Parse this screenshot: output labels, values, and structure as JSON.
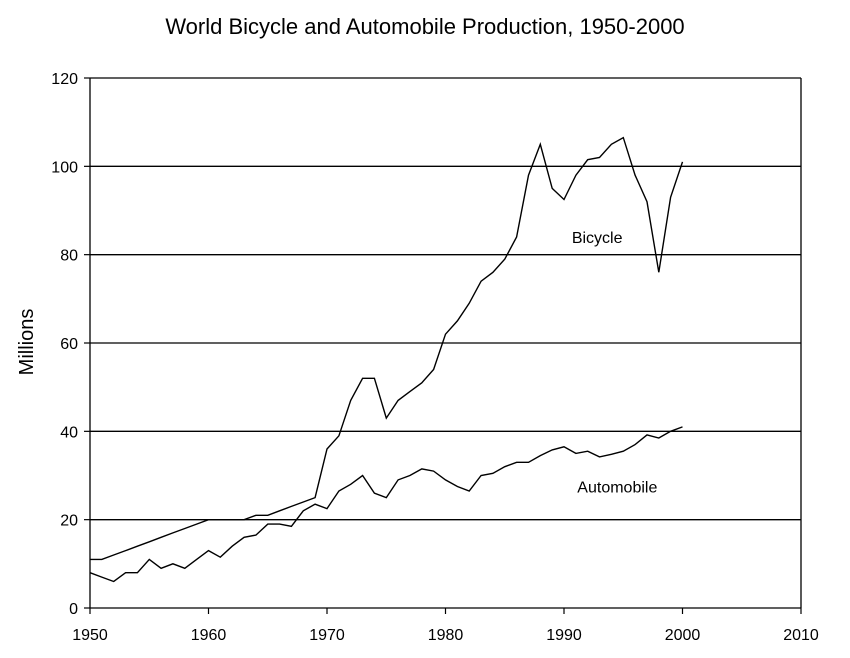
{
  "chart_data": {
    "type": "line",
    "title": "World Bicycle and Automobile Production, 1950-2000",
    "xlabel": "",
    "ylabel": "Millions",
    "xlim": [
      1950,
      2010
    ],
    "ylim": [
      0,
      120
    ],
    "x_ticks": [
      1950,
      1960,
      1970,
      1980,
      1990,
      2000,
      2010
    ],
    "y_ticks": [
      0,
      20,
      40,
      60,
      80,
      100,
      120
    ],
    "grid": "horizontal",
    "legend": "inline labels",
    "series": [
      {
        "name": "Bicycle",
        "color": "#000000",
        "x": [
          1950,
          1951,
          1952,
          1953,
          1954,
          1955,
          1956,
          1957,
          1958,
          1959,
          1960,
          1961,
          1962,
          1963,
          1964,
          1965,
          1966,
          1967,
          1968,
          1969,
          1970,
          1971,
          1972,
          1973,
          1974,
          1975,
          1976,
          1977,
          1978,
          1979,
          1980,
          1981,
          1982,
          1983,
          1984,
          1985,
          1986,
          1987,
          1988,
          1989,
          1990,
          1991,
          1992,
          1993,
          1994,
          1995,
          1996,
          1997,
          1998,
          1999,
          2000
        ],
        "values": [
          11,
          11,
          12,
          13,
          14,
          15,
          16,
          17,
          18,
          19,
          20,
          20,
          20,
          20,
          21,
          21,
          22,
          23,
          24,
          25,
          36,
          39,
          47,
          52,
          52,
          43,
          47,
          49,
          51,
          54,
          62,
          65,
          69,
          74,
          76,
          79,
          84,
          98,
          105,
          95,
          92.5,
          98,
          101.5,
          102,
          105,
          106.5,
          98,
          92,
          76,
          93,
          101
        ]
      },
      {
        "name": "Automobile",
        "color": "#000000",
        "x": [
          1950,
          1951,
          1952,
          1953,
          1954,
          1955,
          1956,
          1957,
          1958,
          1959,
          1960,
          1961,
          1962,
          1963,
          1964,
          1965,
          1966,
          1967,
          1968,
          1969,
          1970,
          1971,
          1972,
          1973,
          1974,
          1975,
          1976,
          1977,
          1978,
          1979,
          1980,
          1981,
          1982,
          1983,
          1984,
          1985,
          1986,
          1987,
          1988,
          1989,
          1990,
          1991,
          1992,
          1993,
          1994,
          1995,
          1996,
          1997,
          1998,
          1999,
          2000
        ],
        "values": [
          8,
          7,
          6,
          8,
          8,
          11,
          9,
          10,
          9,
          11,
          13,
          11.5,
          14,
          16,
          16.5,
          19,
          19,
          18.5,
          22,
          23.5,
          22.5,
          26.5,
          28,
          30,
          26,
          25,
          29,
          30,
          31.5,
          31,
          29,
          27.5,
          26.5,
          30,
          30.5,
          32,
          33,
          33,
          34.5,
          35.8,
          36.5,
          35,
          35.5,
          34.2,
          34.8,
          35.5,
          37,
          39.2,
          38.5,
          40,
          41
        ]
      }
    ],
    "annotations": [
      {
        "text": "Bicycle",
        "x": 1992.8,
        "y": 84
      },
      {
        "text": "Automobile",
        "x": 1994.5,
        "y": 27.5
      }
    ]
  }
}
